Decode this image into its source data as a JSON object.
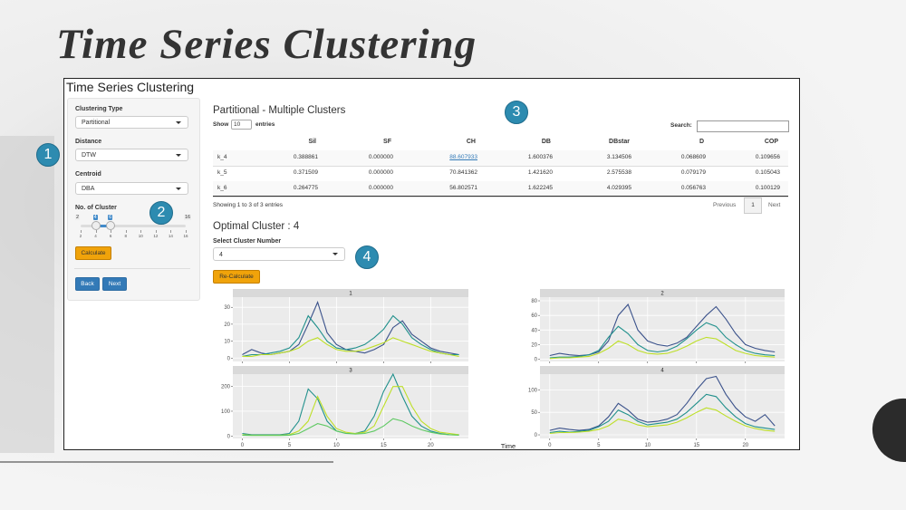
{
  "slide_title": "Time Series Clustering",
  "app": {
    "title": "Time Series Clustering",
    "sidebar": {
      "fields": [
        {
          "label": "Clustering Type",
          "value": "Partitional"
        },
        {
          "label": "Distance",
          "value": "DTW"
        },
        {
          "label": "Centroid",
          "value": "DBA"
        }
      ],
      "slider": {
        "label": "No. of Cluster",
        "min": 2,
        "max": 16,
        "values": [
          4,
          6
        ],
        "ticks": [
          2,
          4,
          6,
          8,
          10,
          12,
          14,
          16
        ]
      },
      "calculate": "Calculate",
      "back": "Back",
      "next": "Next"
    },
    "section_title": "Partitional - Multiple Clusters",
    "table": {
      "show": "Show",
      "length": "10",
      "entries": "entries",
      "search": "Search:",
      "columns": [
        "Sil",
        "SF",
        "CH",
        "DB",
        "DBstar",
        "D",
        "COP"
      ],
      "rows": [
        {
          "name": "k_4",
          "cells": [
            "0.388861",
            "0.000000",
            "88.607933",
            "1.600376",
            "3.134506",
            "0.068609",
            "0.109656"
          ]
        },
        {
          "name": "k_5",
          "cells": [
            "0.371509",
            "0.000000",
            "70.841362",
            "1.421620",
            "2.575538",
            "0.079179",
            "0.105043"
          ]
        },
        {
          "name": "k_6",
          "cells": [
            "0.264775",
            "0.000000",
            "56.802571",
            "1.622245",
            "4.029395",
            "0.056763",
            "0.100129"
          ]
        }
      ],
      "info": "Showing 1 to 3 of 3 entries",
      "previous": "Previous",
      "page": "1",
      "next": "Next"
    },
    "optimal": "Optimal Cluster : 4",
    "select_label": "Select Cluster Number",
    "select_value": "4",
    "recalculate": "Re-Calculate",
    "plots_xlabel": "Time"
  },
  "badges": [
    "1",
    "2",
    "3",
    "4"
  ],
  "chart_data": [
    {
      "type": "line",
      "title": "1",
      "x": [
        0,
        1,
        2,
        3,
        4,
        5,
        6,
        7,
        8,
        9,
        10,
        11,
        12,
        13,
        14,
        15,
        16,
        17,
        18,
        19,
        20,
        21,
        22,
        23
      ],
      "xlim": [
        -1,
        24
      ],
      "xticks": [
        0,
        5,
        10,
        15,
        20
      ],
      "ylim": [
        -2,
        36
      ],
      "yticks": [
        0,
        10,
        20,
        30
      ],
      "series": [
        {
          "color": "#3b528b",
          "values": [
            2,
            5,
            3,
            2,
            3,
            4,
            8,
            20,
            33,
            15,
            8,
            5,
            4,
            3,
            5,
            8,
            18,
            22,
            14,
            10,
            6,
            4,
            3,
            2
          ]
        },
        {
          "color": "#21908c",
          "values": [
            1,
            2,
            2,
            3,
            4,
            6,
            12,
            25,
            18,
            10,
            6,
            5,
            6,
            8,
            12,
            17,
            25,
            20,
            12,
            8,
            5,
            3,
            2,
            2
          ]
        },
        {
          "color": "#bddf26",
          "values": [
            1,
            1,
            2,
            2,
            3,
            4,
            6,
            10,
            12,
            8,
            5,
            4,
            4,
            5,
            7,
            9,
            12,
            10,
            8,
            6,
            4,
            3,
            2,
            1
          ]
        }
      ]
    },
    {
      "type": "line",
      "title": "2",
      "x": [
        0,
        1,
        2,
        3,
        4,
        5,
        6,
        7,
        8,
        9,
        10,
        11,
        12,
        13,
        14,
        15,
        16,
        17,
        18,
        19,
        20,
        21,
        22,
        23
      ],
      "xlim": [
        -1,
        24
      ],
      "xticks": [
        0,
        5,
        10,
        15,
        20
      ],
      "ylim": [
        -3,
        85
      ],
      "yticks": [
        0,
        20,
        40,
        60,
        80
      ],
      "series": [
        {
          "color": "#3b528b",
          "values": [
            5,
            8,
            6,
            5,
            6,
            10,
            25,
            60,
            75,
            40,
            25,
            20,
            18,
            22,
            30,
            45,
            60,
            72,
            55,
            35,
            20,
            15,
            12,
            10
          ]
        },
        {
          "color": "#21908c",
          "values": [
            2,
            3,
            3,
            4,
            6,
            12,
            30,
            45,
            35,
            20,
            12,
            10,
            12,
            18,
            28,
            40,
            50,
            45,
            30,
            20,
            12,
            8,
            6,
            5
          ]
        },
        {
          "color": "#bddf26",
          "values": [
            1,
            2,
            2,
            3,
            4,
            8,
            15,
            25,
            20,
            12,
            8,
            7,
            8,
            12,
            18,
            25,
            30,
            28,
            20,
            12,
            8,
            5,
            4,
            3
          ]
        }
      ]
    },
    {
      "type": "line",
      "title": "3",
      "x": [
        0,
        1,
        2,
        3,
        4,
        5,
        6,
        7,
        8,
        9,
        10,
        11,
        12,
        13,
        14,
        15,
        16,
        17,
        18,
        19,
        20,
        21,
        22,
        23
      ],
      "xlim": [
        -1,
        24
      ],
      "xticks": [
        0,
        5,
        10,
        15,
        20
      ],
      "ylim": [
        -10,
        250
      ],
      "yticks": [
        0,
        100,
        200
      ],
      "series": [
        {
          "color": "#21908c",
          "values": [
            10,
            5,
            5,
            5,
            5,
            10,
            60,
            190,
            150,
            60,
            20,
            10,
            10,
            20,
            80,
            180,
            250,
            160,
            80,
            40,
            20,
            10,
            5,
            5
          ]
        },
        {
          "color": "#bddf26",
          "values": [
            5,
            3,
            3,
            3,
            3,
            5,
            20,
            60,
            160,
            80,
            30,
            15,
            10,
            15,
            40,
            120,
            200,
            200,
            120,
            60,
            30,
            15,
            10,
            5
          ]
        },
        {
          "color": "#5ec962",
          "values": [
            3,
            2,
            2,
            2,
            2,
            3,
            10,
            30,
            50,
            40,
            20,
            10,
            8,
            10,
            20,
            40,
            70,
            60,
            40,
            25,
            15,
            8,
            5,
            3
          ]
        }
      ]
    },
    {
      "type": "line",
      "title": "4",
      "x": [
        0,
        1,
        2,
        3,
        4,
        5,
        6,
        7,
        8,
        9,
        10,
        11,
        12,
        13,
        14,
        15,
        16,
        17,
        18,
        19,
        20,
        21,
        22,
        23
      ],
      "xlim": [
        -1,
        24
      ],
      "xticks": [
        0,
        5,
        10,
        15,
        20
      ],
      "ylim": [
        -8,
        135
      ],
      "yticks": [
        0,
        50,
        100
      ],
      "series": [
        {
          "color": "#3b528b",
          "values": [
            10,
            15,
            12,
            10,
            12,
            20,
            40,
            70,
            55,
            35,
            28,
            30,
            35,
            45,
            70,
            100,
            125,
            130,
            90,
            60,
            40,
            30,
            45,
            20
          ]
        },
        {
          "color": "#21908c",
          "values": [
            5,
            8,
            6,
            8,
            10,
            18,
            30,
            55,
            45,
            30,
            22,
            25,
            28,
            35,
            50,
            70,
            90,
            85,
            60,
            40,
            25,
            18,
            15,
            12
          ]
        },
        {
          "color": "#bddf26",
          "values": [
            3,
            5,
            5,
            6,
            8,
            12,
            20,
            35,
            30,
            22,
            18,
            20,
            22,
            28,
            38,
            50,
            60,
            55,
            42,
            30,
            20,
            14,
            10,
            8
          ]
        }
      ]
    }
  ]
}
